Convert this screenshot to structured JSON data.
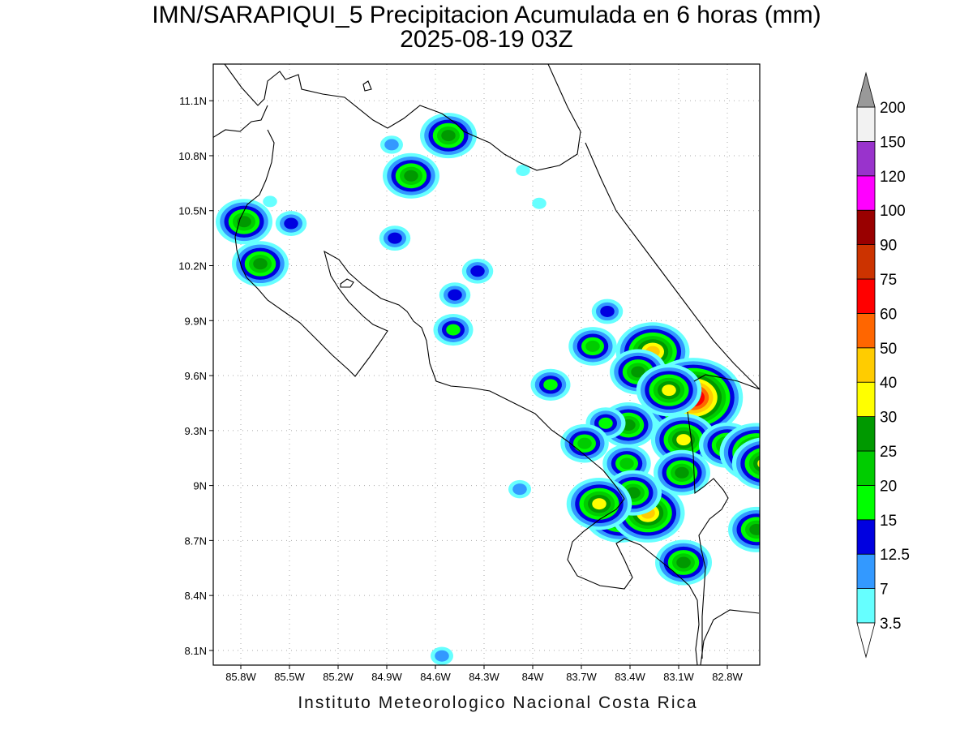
{
  "title_line1": "IMN/SARAPIQUI_5 Precipitacion Acumulada en 6 horas (mm)",
  "title_line2": "2025-08-19 03Z",
  "footer": "Instituto Meteorologico Nacional Costa Rica",
  "axes": {
    "lon_labels": [
      "85.8W",
      "85.5W",
      "85.2W",
      "84.9W",
      "84.6W",
      "84.3W",
      "84W",
      "83.7W",
      "83.4W",
      "83.1W",
      "82.8W"
    ],
    "lat_labels": [
      "11.1N",
      "10.8N",
      "10.5N",
      "10.2N",
      "9.9N",
      "9.6N",
      "9.3N",
      "9N",
      "8.7N",
      "8.4N",
      "8.1N"
    ],
    "lon_range": [
      -85.97,
      -82.6
    ],
    "lat_range": [
      8.02,
      11.3
    ],
    "grid": true
  },
  "colorbar": {
    "levels": [
      "3.5",
      "7",
      "12.5",
      "15",
      "20",
      "25",
      "30",
      "40",
      "50",
      "60",
      "75",
      "90",
      "100",
      "120",
      "150",
      "200"
    ],
    "colors": [
      "#66ffff",
      "#3399ff",
      "#0000e0",
      "#00ff00",
      "#00cc00",
      "#009900",
      "#ffff00",
      "#ffcc00",
      "#ff6600",
      "#ff0000",
      "#cc3300",
      "#990000",
      "#ff00ff",
      "#9933cc",
      "#f2f2f2",
      "#999999"
    ]
  },
  "precip_cells": [
    {
      "lon": -85.78,
      "lat": 10.44,
      "level": 5
    },
    {
      "lon": -85.68,
      "lat": 10.21,
      "level": 5
    },
    {
      "lon": -85.49,
      "lat": 10.43,
      "level": 2
    },
    {
      "lon": -84.85,
      "lat": 10.35,
      "level": 2
    },
    {
      "lon": -84.75,
      "lat": 10.69,
      "level": 5
    },
    {
      "lon": -84.52,
      "lat": 10.91,
      "level": 5
    },
    {
      "lon": -84.87,
      "lat": 10.86,
      "level": 1
    },
    {
      "lon": -84.34,
      "lat": 10.17,
      "level": 2
    },
    {
      "lon": -84.48,
      "lat": 10.04,
      "level": 2
    },
    {
      "lon": -84.49,
      "lat": 9.85,
      "level": 3
    },
    {
      "lon": -83.54,
      "lat": 9.95,
      "level": 2
    },
    {
      "lon": -83.63,
      "lat": 9.76,
      "level": 4
    },
    {
      "lon": -83.26,
      "lat": 9.73,
      "level": 7
    },
    {
      "lon": -83.35,
      "lat": 9.62,
      "level": 5
    },
    {
      "lon": -83.01,
      "lat": 9.48,
      "level": 10
    },
    {
      "lon": -83.16,
      "lat": 9.52,
      "level": 6
    },
    {
      "lon": -83.07,
      "lat": 9.25,
      "level": 6
    },
    {
      "lon": -83.08,
      "lat": 9.07,
      "level": 5
    },
    {
      "lon": -83.41,
      "lat": 9.33,
      "level": 5
    },
    {
      "lon": -83.55,
      "lat": 9.34,
      "level": 3
    },
    {
      "lon": -83.68,
      "lat": 9.23,
      "level": 4
    },
    {
      "lon": -83.89,
      "lat": 9.55,
      "level": 3
    },
    {
      "lon": -83.42,
      "lat": 9.12,
      "level": 4
    },
    {
      "lon": -83.46,
      "lat": 8.85,
      "level": 7
    },
    {
      "lon": -83.29,
      "lat": 8.85,
      "level": 7
    },
    {
      "lon": -83.38,
      "lat": 8.96,
      "level": 5
    },
    {
      "lon": -83.59,
      "lat": 8.9,
      "level": 6
    },
    {
      "lon": -83.07,
      "lat": 8.58,
      "level": 5
    },
    {
      "lon": -82.8,
      "lat": 9.22,
      "level": 5
    },
    {
      "lon": -82.62,
      "lat": 9.18,
      "level": 7
    },
    {
      "lon": -82.57,
      "lat": 9.12,
      "level": 6
    },
    {
      "lon": -82.62,
      "lat": 8.76,
      "level": 5
    },
    {
      "lon": -84.08,
      "lat": 8.98,
      "level": 1
    },
    {
      "lon": -84.06,
      "lat": 10.72,
      "level": 0
    },
    {
      "lon": -83.96,
      "lat": 10.54,
      "level": 0
    },
    {
      "lon": -85.62,
      "lat": 10.55,
      "level": 0
    },
    {
      "lon": -84.56,
      "lat": 8.07,
      "level": 1
    }
  ]
}
